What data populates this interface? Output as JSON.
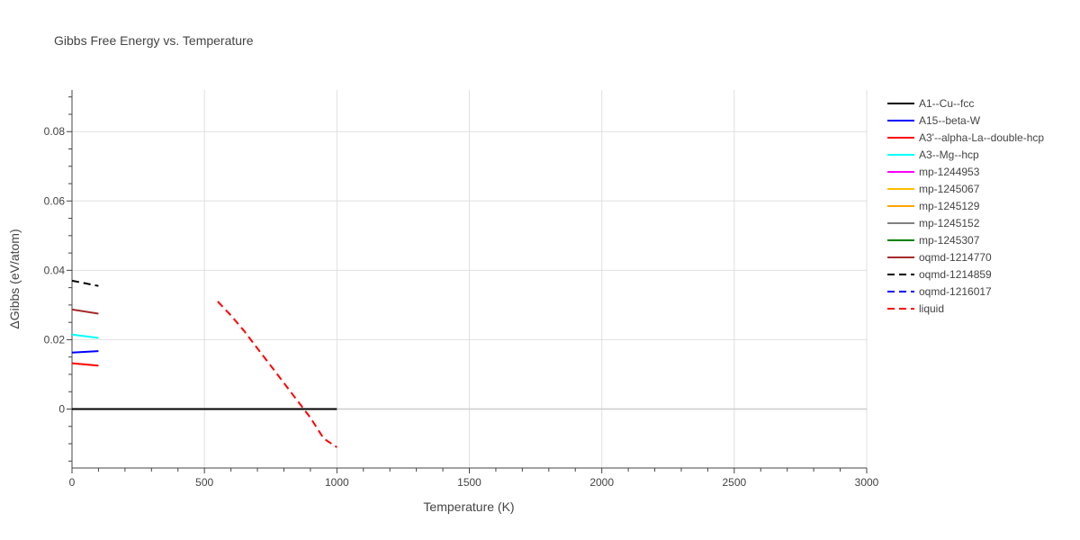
{
  "chart_data": {
    "type": "line",
    "title": "Gibbs Free Energy vs. Temperature",
    "xlabel": "Temperature (K)",
    "ylabel": "ΔGibbs (eV/atom)",
    "xlim": [
      0,
      3000
    ],
    "ylim": [
      -0.017,
      0.092
    ],
    "xticks": [
      0,
      500,
      1000,
      1500,
      2000,
      2500,
      3000
    ],
    "xtick_labels": [
      "0",
      "500",
      "1000",
      "1500",
      "2000",
      "2500",
      "3000"
    ],
    "yticks": [
      0,
      0.02,
      0.04,
      0.06,
      0.08
    ],
    "ytick_labels": [
      "0",
      "0.02",
      "0.04",
      "0.06",
      "0.08"
    ],
    "grid": true,
    "legend_position": "right",
    "series": [
      {
        "name": "A1--Cu--fcc",
        "color": "#000000",
        "dash": "solid",
        "x": [
          0,
          1000
        ],
        "y": [
          0,
          0
        ]
      },
      {
        "name": "A15--beta-W",
        "color": "#0000ff",
        "dash": "solid",
        "x": [
          0,
          100
        ],
        "y": [
          0.0163,
          0.0167
        ]
      },
      {
        "name": "A3'--alpha-La--double-hcp",
        "color": "#ff0000",
        "dash": "solid",
        "x": [
          0,
          100
        ],
        "y": [
          0.0132,
          0.0125
        ]
      },
      {
        "name": "A3--Mg--hcp",
        "color": "#00ffff",
        "dash": "solid",
        "x": [
          0,
          100
        ],
        "y": [
          0.0215,
          0.0205
        ]
      },
      {
        "name": "mp-1244953",
        "color": "#ff00ff",
        "dash": "solid",
        "x": [],
        "y": []
      },
      {
        "name": "mp-1245067",
        "color": "#ffbf00",
        "dash": "solid",
        "x": [],
        "y": []
      },
      {
        "name": "mp-1245129",
        "color": "#ffa500",
        "dash": "solid",
        "x": [],
        "y": []
      },
      {
        "name": "mp-1245152",
        "color": "#808080",
        "dash": "solid",
        "x": [],
        "y": []
      },
      {
        "name": "mp-1245307",
        "color": "#008000",
        "dash": "solid",
        "x": [],
        "y": []
      },
      {
        "name": "oqmd-1214770",
        "color": "#a52a2a",
        "dash": "solid",
        "x": [
          0,
          100
        ],
        "y": [
          0.0287,
          0.0275
        ]
      },
      {
        "name": "oqmd-1214859",
        "color": "#000000",
        "dash": "dash",
        "x": [
          0,
          100
        ],
        "y": [
          0.037,
          0.0355
        ]
      },
      {
        "name": "oqmd-1216017",
        "color": "#0000ff",
        "dash": "dash",
        "x": [],
        "y": []
      },
      {
        "name": "liquid",
        "color": "#ff0000",
        "dash": "dash",
        "x": [
          550,
          600,
          650,
          700,
          750,
          800,
          850,
          900,
          950,
          1000
        ],
        "y": [
          0.031,
          0.027,
          0.0225,
          0.0175,
          0.0125,
          0.0075,
          0.0025,
          -0.0025,
          -0.0085,
          -0.011
        ]
      }
    ]
  }
}
